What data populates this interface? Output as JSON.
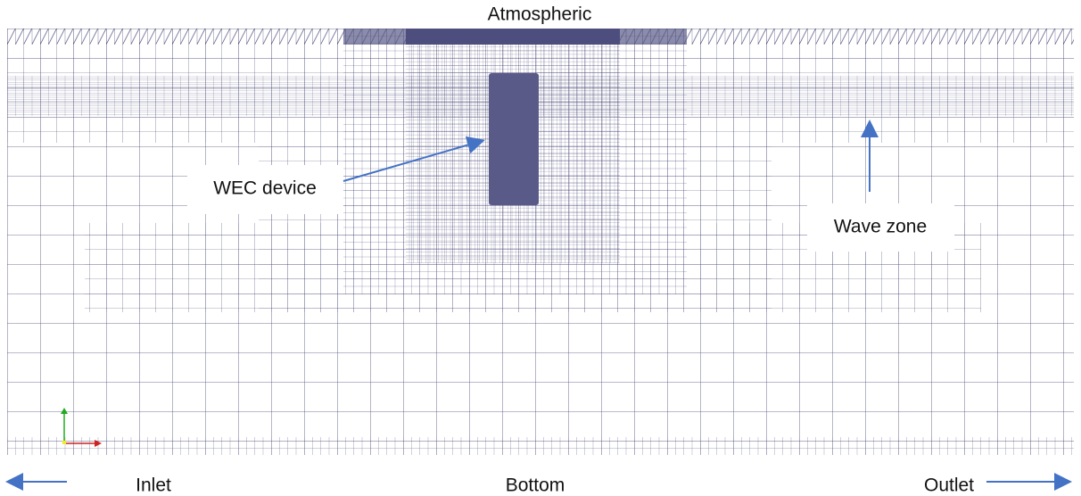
{
  "labels": {
    "top": "Atmospheric",
    "device": "WEC device",
    "wave": "Wave zone",
    "inlet": "Inlet",
    "bottom": "Bottom",
    "outlet": "Outlet"
  }
}
